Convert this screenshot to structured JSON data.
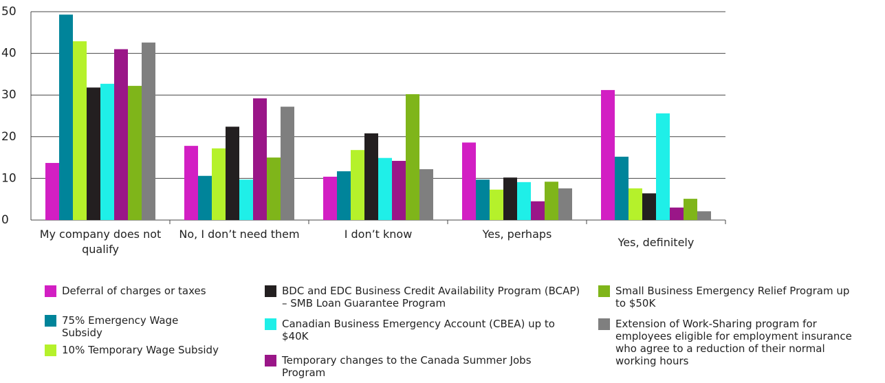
{
  "chart_data": {
    "type": "bar",
    "categories": [
      "My company does not qualify",
      "No, I don’t need them",
      "I don’t know",
      "Yes, perhaps",
      "Yes, definitely"
    ],
    "series": [
      {
        "name": "Deferral of charges or taxes",
        "color": "#d21fc3",
        "values": [
          13.7,
          17.8,
          10.4,
          18.6,
          31.2
        ]
      },
      {
        "name": "75% Emergency Wage Subsidy",
        "color": "#00849a",
        "values": [
          49.3,
          10.6,
          11.7,
          9.7,
          15.2
        ]
      },
      {
        "name": "10% Temporary Wage Subsidy",
        "color": "#b5f12b",
        "values": [
          42.9,
          17.2,
          16.8,
          7.3,
          7.6
        ]
      },
      {
        "name": "BDC and EDC Business Credit Availability Program (BCAP) – SMB Loan Guarantee Program",
        "color": "#231f20",
        "values": [
          31.8,
          22.4,
          20.8,
          10.2,
          6.4
        ]
      },
      {
        "name": "Canadian Business Emergency Account (CBEA) up to $40K",
        "color": "#1fefe8",
        "values": [
          32.7,
          9.7,
          14.9,
          9.1,
          25.6
        ]
      },
      {
        "name": "Temporary changes to the Canada Summer Jobs Program",
        "color": "#9a1688",
        "values": [
          41.0,
          29.2,
          14.2,
          4.5,
          3.0
        ]
      },
      {
        "name": "Small Business Emergency Relief Program up to $50K",
        "color": "#7fb51a",
        "values": [
          32.2,
          15.0,
          30.2,
          9.2,
          5.1
        ]
      },
      {
        "name": "Extension of Work-Sharing program for employees eligible for employment insurance who agree to a reduction of their normal working hours",
        "color": "#7f7f7f",
        "values": [
          42.6,
          27.2,
          12.2,
          7.6,
          2.1
        ]
      }
    ],
    "ylim": [
      0,
      50
    ],
    "yticks": [
      0,
      10,
      20,
      30,
      40,
      50
    ],
    "grid": true
  }
}
